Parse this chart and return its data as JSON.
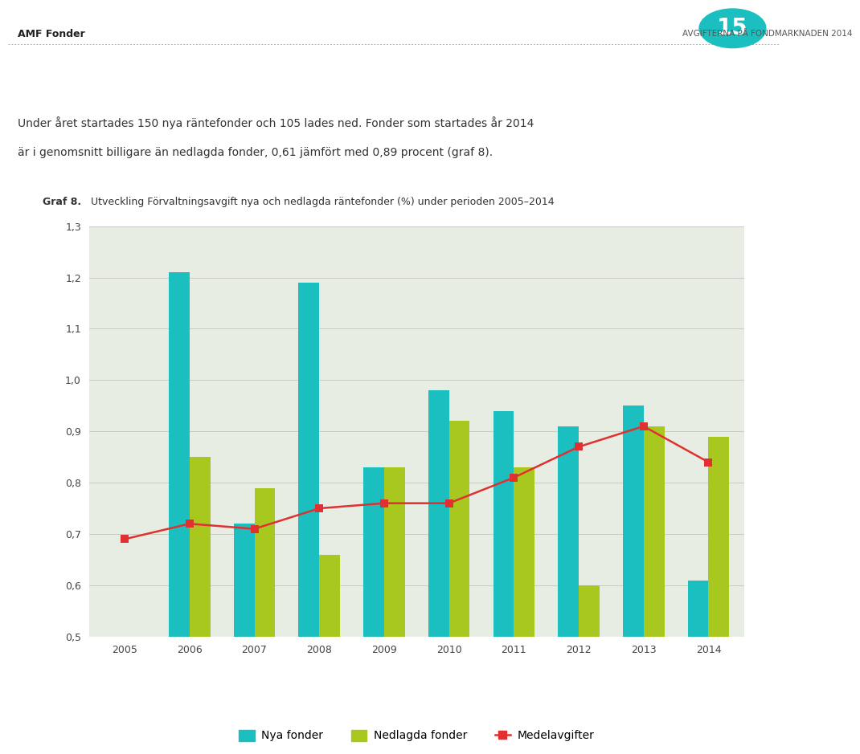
{
  "years": [
    2005,
    2006,
    2007,
    2008,
    2009,
    2010,
    2011,
    2012,
    2013,
    2014
  ],
  "nya_fonder": [
    null,
    1.21,
    0.72,
    1.19,
    0.83,
    0.98,
    0.94,
    0.91,
    0.95,
    0.61
  ],
  "nedlagda_fonder": [
    null,
    0.85,
    0.79,
    0.66,
    0.83,
    0.92,
    0.83,
    0.6,
    0.91,
    0.89
  ],
  "medelavgifter": [
    0.69,
    0.72,
    0.71,
    0.75,
    0.76,
    0.76,
    0.81,
    0.87,
    0.91,
    0.84
  ],
  "nya_fonder_color": "#1BBFBF",
  "nedlagda_fonder_color": "#A8C820",
  "medelavgifter_color": "#E03030",
  "background_color": "#E8EDE4",
  "grid_color": "#C8C8C8",
  "ylim": [
    0.5,
    1.3
  ],
  "yticks": [
    0.5,
    0.6,
    0.7,
    0.8,
    0.9,
    1.0,
    1.1,
    1.2,
    1.3
  ],
  "title_bold": "Graf 8.",
  "title_normal": " Utveckling Förvaltningsavgift nya och nedlagda räntefonder (%) under perioden 2005–2014",
  "legend_nya": "Nya fonder",
  "legend_nedlagda": "Nedlagda fonder",
  "legend_medel": "Medelavgifter",
  "header_left": "AMF Fonder",
  "header_right": "AVGIFTERNA PÅ FONDMARKNADEN 2014",
  "page_number": "15",
  "body_text_line1": "Under året startades 150 nya räntefonder och 105 lades ned. Fonder som startades år 2014",
  "body_text_line2": "är i genomsnitt billigare än nedlagda fonder, 0,61 jämfört med 0,89 procent (graf 8)."
}
